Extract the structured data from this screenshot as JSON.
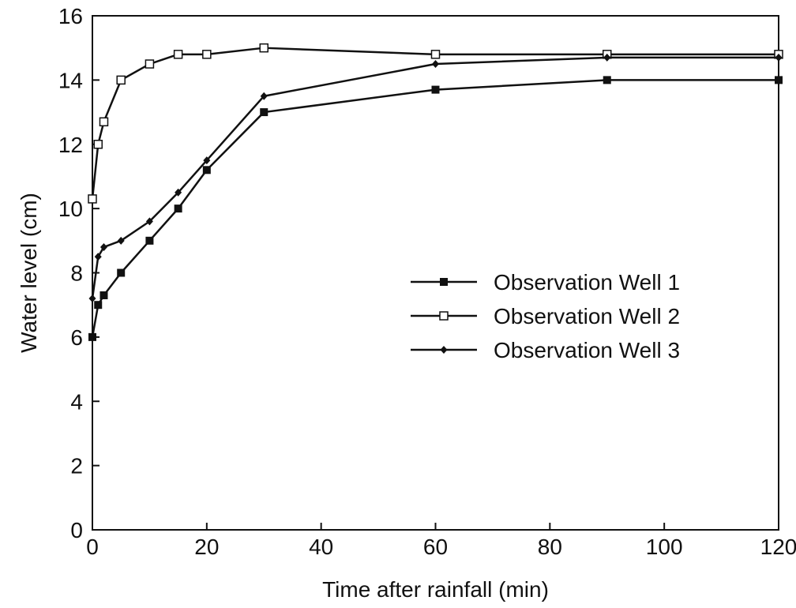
{
  "chart_data": {
    "type": "line",
    "title": "",
    "xlabel": "Time after rainfall (min)",
    "ylabel": "Water level (cm)",
    "xlim": [
      0,
      120
    ],
    "ylim": [
      0,
      16
    ],
    "xticks": [
      0,
      20,
      40,
      60,
      80,
      100,
      120
    ],
    "yticks": [
      0,
      2,
      4,
      6,
      8,
      10,
      12,
      14,
      16
    ],
    "xtick_labels": [
      "0",
      "20",
      "40",
      "60",
      "80",
      "100",
      "120"
    ],
    "ytick_labels": [
      "0",
      "2",
      "4",
      "6",
      "8",
      "10",
      "12",
      "14",
      "16"
    ],
    "grid": false,
    "legend_position": "center-right",
    "series": [
      {
        "name": "Observation Well 1",
        "marker": "filled-square",
        "color": "#111111",
        "x": [
          0,
          1,
          2,
          5,
          10,
          15,
          20,
          30,
          60,
          90,
          120
        ],
        "y": [
          6.0,
          7.0,
          7.3,
          8.0,
          9.0,
          10.0,
          11.2,
          13.0,
          13.7,
          14.0,
          14.0
        ]
      },
      {
        "name": "Observation Well 2",
        "marker": "open-square",
        "color": "#111111",
        "x": [
          0,
          1,
          2,
          5,
          10,
          15,
          20,
          30,
          60,
          90,
          120
        ],
        "y": [
          10.3,
          12.0,
          12.7,
          14.0,
          14.5,
          14.8,
          14.8,
          15.0,
          14.8,
          14.8,
          14.8
        ]
      },
      {
        "name": "Observation Well 3",
        "marker": "filled-diamond",
        "color": "#111111",
        "x": [
          0,
          1,
          2,
          5,
          10,
          15,
          20,
          30,
          60,
          90,
          120
        ],
        "y": [
          7.2,
          8.5,
          8.8,
          9.0,
          9.6,
          10.5,
          11.5,
          13.5,
          14.5,
          14.7,
          14.7
        ]
      }
    ]
  }
}
